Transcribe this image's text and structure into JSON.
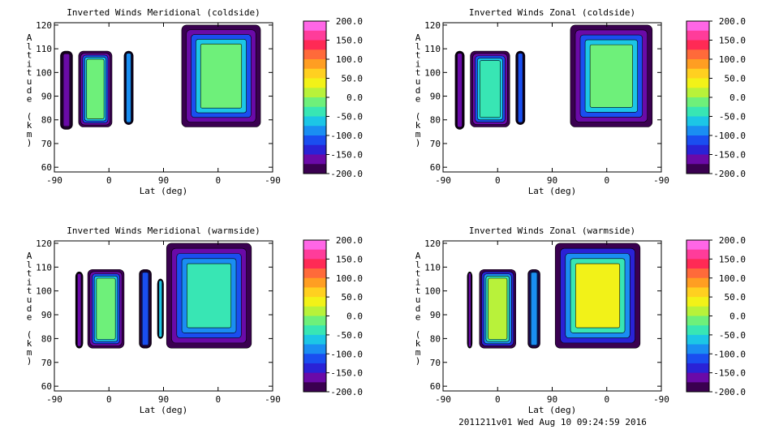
{
  "footer": "2011211v01 Wed Aug 10 09:24:59 2016",
  "colorbar": {
    "ticks": [
      "200.0",
      "150.0",
      "100.0",
      "50.0",
      "0.0",
      "-50.0",
      "-100.0",
      "-150.0",
      "-200.0"
    ],
    "colors": [
      "#ff66e6",
      "#ff3c9a",
      "#ff2a55",
      "#ff6a3a",
      "#ff9e22",
      "#ffd020",
      "#f2f218",
      "#b8f23a",
      "#6ef07a",
      "#38e6b4",
      "#1cc6e6",
      "#1a8ef2",
      "#1a4ef0",
      "#2a22d6",
      "#6a0aa8",
      "#3a0050"
    ]
  },
  "chart_data": [
    {
      "type": "heatmap",
      "title": "Inverted Winds Meridional (coldside)",
      "xlabel": "Lat (deg)",
      "ylabel": "Altitude (km)",
      "xticks": [
        "-90",
        "0",
        "90",
        "0",
        "-90"
      ],
      "yticks": [
        "60",
        "70",
        "80",
        "90",
        "100",
        "110",
        "120"
      ],
      "ylim": [
        58,
        121
      ],
      "clim": [
        -200,
        200
      ],
      "blocks": [
        {
          "lat": [
            -80,
            -60
          ],
          "alt": [
            76,
            109
          ],
          "level": -160
        },
        {
          "lat": [
            -50,
            5
          ],
          "alt": [
            77,
            109
          ],
          "level": -20
        },
        {
          "lat": [
            25,
            40
          ],
          "alt": [
            78,
            109
          ],
          "level": -90
        },
        {
          "lat": [
            120,
            250
          ],
          "alt": [
            77,
            120
          ],
          "level": -5
        }
      ]
    },
    {
      "type": "heatmap",
      "title": "Inverted Winds Zonal (coldside)",
      "xlabel": "Lat (deg)",
      "ylabel": "Altitude (km)",
      "xticks": [
        "-90",
        "0",
        "90",
        "0",
        "-90"
      ],
      "yticks": [
        "60",
        "70",
        "80",
        "90",
        "100",
        "110",
        "120"
      ],
      "ylim": [
        58,
        121
      ],
      "clim": [
        -200,
        200
      ],
      "blocks": [
        {
          "lat": [
            -70,
            -55
          ],
          "alt": [
            76,
            109
          ],
          "level": -150
        },
        {
          "lat": [
            -45,
            20
          ],
          "alt": [
            77,
            109
          ],
          "level": -30
        },
        {
          "lat": [
            30,
            45
          ],
          "alt": [
            78,
            109
          ],
          "level": -100
        },
        {
          "lat": [
            120,
            255
          ],
          "alt": [
            77,
            120
          ],
          "level": -10
        }
      ]
    },
    {
      "type": "heatmap",
      "title": "Inverted Winds Meridional (warmside)",
      "xlabel": "Lat (deg)",
      "ylabel": "Altitude (km)",
      "xticks": [
        "-90",
        "0",
        "90",
        "0",
        "-90"
      ],
      "yticks": [
        "60",
        "70",
        "80",
        "90",
        "100",
        "110",
        "120"
      ],
      "ylim": [
        58,
        121
      ],
      "clim": [
        -200,
        200
      ],
      "blocks": [
        {
          "lat": [
            -55,
            -43
          ],
          "alt": [
            76,
            108
          ],
          "level": -150
        },
        {
          "lat": [
            -35,
            25
          ],
          "alt": [
            76,
            109
          ],
          "level": -5
        },
        {
          "lat": [
            50,
            70
          ],
          "alt": [
            76,
            109
          ],
          "level": -110
        },
        {
          "lat": [
            80,
            90
          ],
          "alt": [
            80,
            105
          ],
          "level": -60
        },
        {
          "lat": [
            95,
            235
          ],
          "alt": [
            76,
            120
          ],
          "level": -40
        }
      ]
    },
    {
      "type": "heatmap",
      "title": "Inverted Winds Zonal (warmside)",
      "xlabel": "Lat (deg)",
      "ylabel": "Altitude (km)",
      "xticks": [
        "-90",
        "0",
        "90",
        "0",
        "-90"
      ],
      "yticks": [
        "60",
        "70",
        "80",
        "90",
        "100",
        "110",
        "120"
      ],
      "ylim": [
        58,
        121
      ],
      "clim": [
        -200,
        200
      ],
      "blocks": [
        {
          "lat": [
            -50,
            -42
          ],
          "alt": [
            76,
            108
          ],
          "level": -150
        },
        {
          "lat": [
            -30,
            30
          ],
          "alt": [
            76,
            109
          ],
          "level": 5
        },
        {
          "lat": [
            50,
            70
          ],
          "alt": [
            76,
            109
          ],
          "level": -80
        },
        {
          "lat": [
            95,
            235
          ],
          "alt": [
            76,
            120
          ],
          "level": 30
        }
      ]
    }
  ]
}
